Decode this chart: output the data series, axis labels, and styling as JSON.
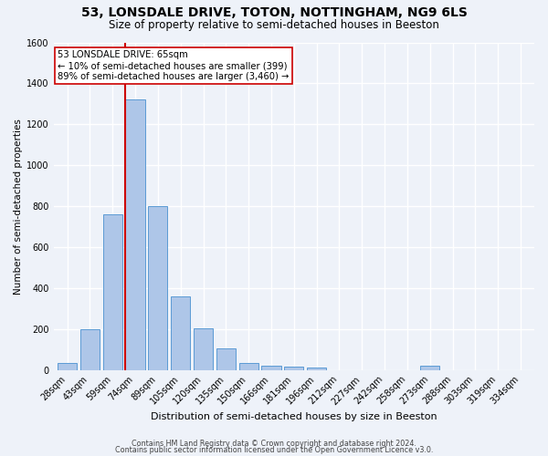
{
  "title": "53, LONSDALE DRIVE, TOTON, NOTTINGHAM, NG9 6LS",
  "subtitle": "Size of property relative to semi-detached houses in Beeston",
  "xlabel": "Distribution of semi-detached houses by size in Beeston",
  "ylabel": "Number of semi-detached properties",
  "categories": [
    "28sqm",
    "43sqm",
    "59sqm",
    "74sqm",
    "89sqm",
    "105sqm",
    "120sqm",
    "135sqm",
    "150sqm",
    "166sqm",
    "181sqm",
    "196sqm",
    "212sqm",
    "227sqm",
    "242sqm",
    "258sqm",
    "273sqm",
    "288sqm",
    "303sqm",
    "319sqm",
    "334sqm"
  ],
  "values": [
    35,
    200,
    760,
    1320,
    800,
    360,
    205,
    105,
    35,
    20,
    15,
    10,
    0,
    0,
    0,
    0,
    20,
    0,
    0,
    0,
    0
  ],
  "bar_color": "#aec6e8",
  "bar_edge_color": "#5b9bd5",
  "property_line_x": 2.57,
  "annotation_title": "53 LONSDALE DRIVE: 65sqm",
  "annotation_line1": "← 10% of semi-detached houses are smaller (399)",
  "annotation_line2": "89% of semi-detached houses are larger (3,460) →",
  "line_color": "#cc0000",
  "annotation_box_color": "#ffffff",
  "annotation_box_edge": "#cc0000",
  "ylim": [
    0,
    1600
  ],
  "yticks": [
    0,
    200,
    400,
    600,
    800,
    1000,
    1200,
    1400,
    1600
  ],
  "footer1": "Contains HM Land Registry data © Crown copyright and database right 2024.",
  "footer2": "Contains public sector information licensed under the Open Government Licence v3.0.",
  "bg_color": "#eef2f9",
  "grid_color": "#ffffff",
  "title_fontsize": 10,
  "subtitle_fontsize": 8.5,
  "ylabel_fontsize": 7.5,
  "xlabel_fontsize": 8,
  "tick_fontsize": 7,
  "ann_fontsize": 7.2
}
